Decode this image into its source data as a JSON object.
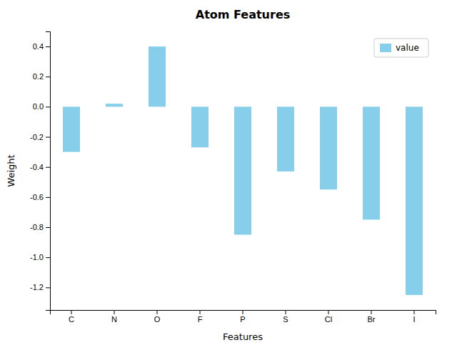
{
  "chart_data": {
    "type": "bar",
    "title": "Atom Features",
    "xlabel": "Features",
    "ylabel": "Weight",
    "categories": [
      "C",
      "N",
      "O",
      "F",
      "P",
      "S",
      "Cl",
      "Br",
      "I"
    ],
    "series": [
      {
        "name": "value",
        "color": "#87CEEB",
        "values": [
          -0.3,
          0.02,
          0.4,
          -0.27,
          -0.85,
          -0.43,
          -0.55,
          -0.75,
          -1.25
        ]
      }
    ],
    "ylim": [
      -1.35,
      0.5
    ],
    "yticks": [
      -1.2,
      {
        "value": -1.0,
        "label": "-1.0"
      },
      -0.8,
      -0.6,
      -0.4,
      -0.2,
      {
        "value": 0.0,
        "label": "0.0"
      },
      0.2,
      0.4
    ],
    "legend": "upper right",
    "grid": false
  }
}
